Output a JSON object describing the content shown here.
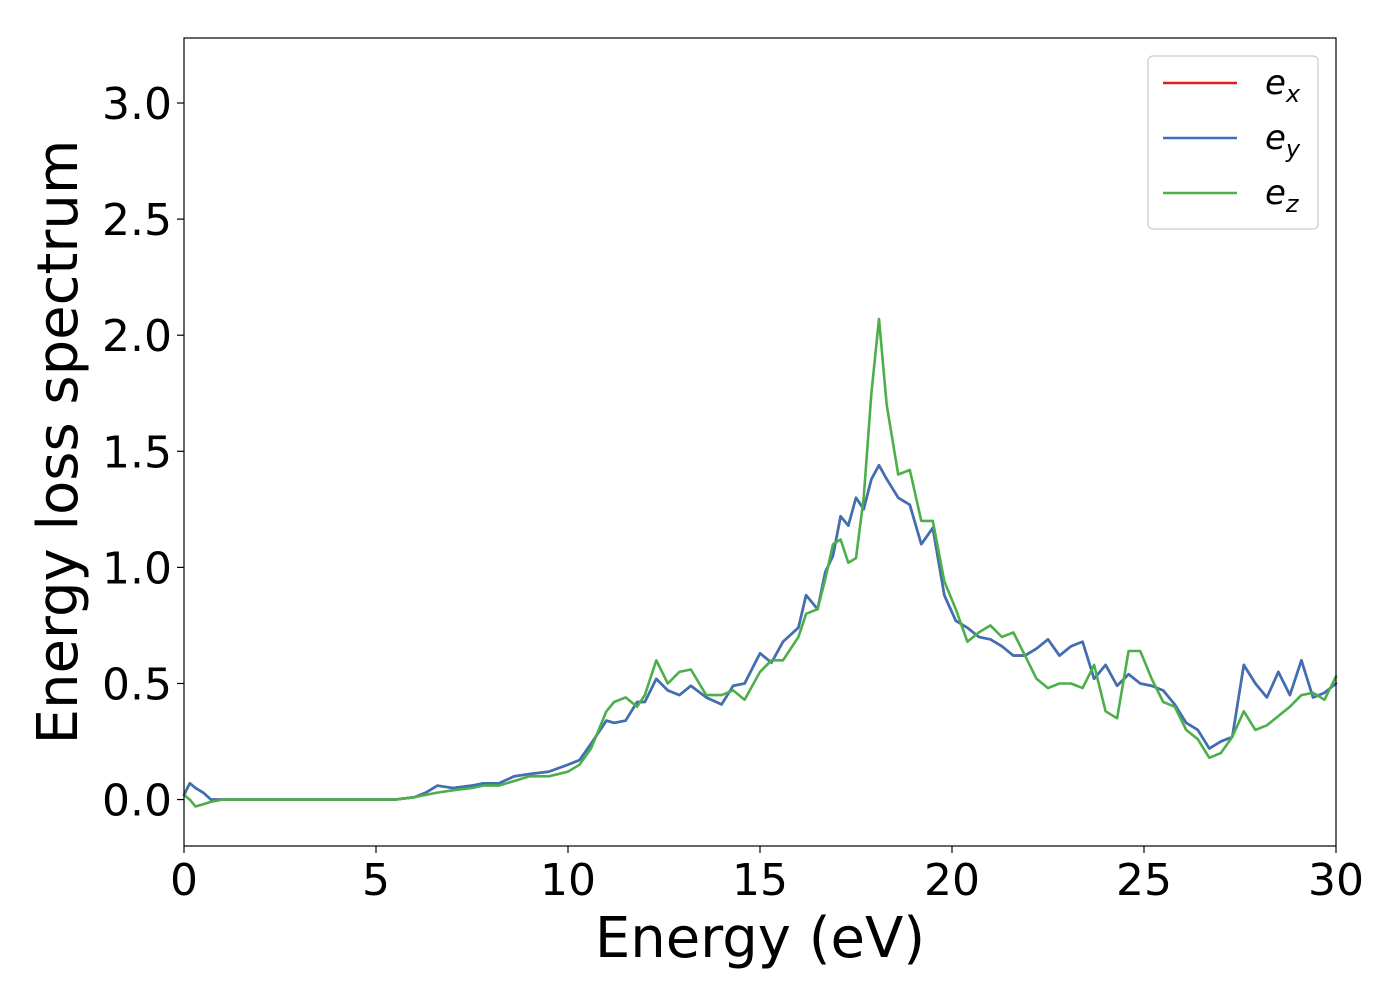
{
  "chart_data": {
    "type": "line",
    "title": "",
    "xlabel": "Energy (eV)",
    "ylabel": "Energy loss spectrum",
    "xlim": [
      0,
      30
    ],
    "ylim": [
      -0.2,
      3.28
    ],
    "xticks": [
      0,
      5,
      10,
      15,
      20,
      25,
      30
    ],
    "xtick_labels": [
      "0",
      "5",
      "10",
      "15",
      "20",
      "25",
      "30"
    ],
    "yticks": [
      0.0,
      0.5,
      1.0,
      1.5,
      2.0,
      2.5,
      3.0
    ],
    "ytick_labels": [
      "0.0",
      "0.5",
      "1.0",
      "1.5",
      "2.0",
      "2.5",
      "3.0"
    ],
    "grid": false,
    "legend_position": "top-right",
    "series": [
      {
        "name": "e",
        "subscript": "x",
        "color": "#e41a1c",
        "x": [
          0,
          0.15,
          0.3,
          0.5,
          0.7,
          1.0,
          2,
          3,
          4,
          5,
          5.5,
          6,
          6.3,
          6.6,
          7,
          7.5,
          7.8,
          8.2,
          8.6,
          9,
          9.5,
          10,
          10.3,
          10.6,
          11,
          11.2,
          11.5,
          11.8,
          12,
          12.3,
          12.6,
          12.9,
          13.2,
          13.6,
          14,
          14.3,
          14.6,
          15,
          15.3,
          15.6,
          16,
          16.2,
          16.5,
          16.7,
          16.9,
          17.1,
          17.3,
          17.5,
          17.7,
          17.9,
          18.1,
          18.3,
          18.6,
          18.9,
          19.2,
          19.5,
          19.8,
          20.1,
          20.4,
          20.7,
          21,
          21.3,
          21.6,
          21.9,
          22.2,
          22.5,
          22.8,
          23.1,
          23.4,
          23.7,
          24,
          24.3,
          24.6,
          24.9,
          25.2,
          25.5,
          25.8,
          26.1,
          26.4,
          26.7,
          27,
          27.3,
          27.6,
          27.9,
          28.2,
          28.5,
          28.8,
          29.1,
          29.4,
          29.7,
          30
        ],
        "y": [
          0.02,
          0.07,
          0.05,
          0.03,
          0.0,
          0.0,
          0.0,
          0.0,
          0.0,
          0.0,
          0.0,
          0.01,
          0.03,
          0.06,
          0.05,
          0.06,
          0.07,
          0.07,
          0.1,
          0.11,
          0.12,
          0.15,
          0.17,
          0.24,
          0.34,
          0.33,
          0.34,
          0.42,
          0.42,
          0.52,
          0.47,
          0.45,
          0.49,
          0.44,
          0.41,
          0.49,
          0.5,
          0.63,
          0.59,
          0.68,
          0.74,
          0.88,
          0.82,
          0.98,
          1.05,
          1.22,
          1.18,
          1.3,
          1.25,
          1.38,
          1.44,
          1.38,
          1.3,
          1.27,
          1.1,
          1.17,
          0.88,
          0.77,
          0.74,
          0.7,
          0.69,
          0.66,
          0.62,
          0.62,
          0.65,
          0.69,
          0.62,
          0.66,
          0.68,
          0.52,
          0.58,
          0.49,
          0.54,
          0.5,
          0.49,
          0.47,
          0.41,
          0.33,
          0.3,
          0.22,
          0.25,
          0.27,
          0.58,
          0.5,
          0.44,
          0.55,
          0.45,
          0.6,
          0.44,
          0.46,
          0.5
        ]
      },
      {
        "name": "e",
        "subscript": "y",
        "color": "#3a72b8",
        "x": [
          0,
          0.15,
          0.3,
          0.5,
          0.7,
          1.0,
          2,
          3,
          4,
          5,
          5.5,
          6,
          6.3,
          6.6,
          7,
          7.5,
          7.8,
          8.2,
          8.6,
          9,
          9.5,
          10,
          10.3,
          10.6,
          11,
          11.2,
          11.5,
          11.8,
          12,
          12.3,
          12.6,
          12.9,
          13.2,
          13.6,
          14,
          14.3,
          14.6,
          15,
          15.3,
          15.6,
          16,
          16.2,
          16.5,
          16.7,
          16.9,
          17.1,
          17.3,
          17.5,
          17.7,
          17.9,
          18.1,
          18.3,
          18.6,
          18.9,
          19.2,
          19.5,
          19.8,
          20.1,
          20.4,
          20.7,
          21,
          21.3,
          21.6,
          21.9,
          22.2,
          22.5,
          22.8,
          23.1,
          23.4,
          23.7,
          24,
          24.3,
          24.6,
          24.9,
          25.2,
          25.5,
          25.8,
          26.1,
          26.4,
          26.7,
          27,
          27.3,
          27.6,
          27.9,
          28.2,
          28.5,
          28.8,
          29.1,
          29.4,
          29.7,
          30
        ],
        "y": [
          0.02,
          0.07,
          0.05,
          0.03,
          0.0,
          0.0,
          0.0,
          0.0,
          0.0,
          0.0,
          0.0,
          0.01,
          0.03,
          0.06,
          0.05,
          0.06,
          0.07,
          0.07,
          0.1,
          0.11,
          0.12,
          0.15,
          0.17,
          0.24,
          0.34,
          0.33,
          0.34,
          0.42,
          0.42,
          0.52,
          0.47,
          0.45,
          0.49,
          0.44,
          0.41,
          0.49,
          0.5,
          0.63,
          0.59,
          0.68,
          0.74,
          0.88,
          0.82,
          0.98,
          1.05,
          1.22,
          1.18,
          1.3,
          1.25,
          1.38,
          1.44,
          1.38,
          1.3,
          1.27,
          1.1,
          1.17,
          0.88,
          0.77,
          0.74,
          0.7,
          0.69,
          0.66,
          0.62,
          0.62,
          0.65,
          0.69,
          0.62,
          0.66,
          0.68,
          0.52,
          0.58,
          0.49,
          0.54,
          0.5,
          0.49,
          0.47,
          0.41,
          0.33,
          0.3,
          0.22,
          0.25,
          0.27,
          0.58,
          0.5,
          0.44,
          0.55,
          0.45,
          0.6,
          0.44,
          0.46,
          0.5
        ]
      },
      {
        "name": "e",
        "subscript": "z",
        "color": "#4daf4a",
        "x": [
          0,
          0.15,
          0.3,
          0.5,
          0.7,
          1.0,
          2,
          3,
          4,
          5,
          5.5,
          6,
          6.3,
          6.6,
          7,
          7.5,
          7.8,
          8.2,
          8.6,
          9,
          9.5,
          10,
          10.3,
          10.6,
          11,
          11.2,
          11.5,
          11.8,
          12,
          12.3,
          12.6,
          12.9,
          13.2,
          13.6,
          14,
          14.3,
          14.6,
          15,
          15.3,
          15.6,
          16,
          16.2,
          16.5,
          16.7,
          16.9,
          17.1,
          17.3,
          17.5,
          17.7,
          17.9,
          18.1,
          18.3,
          18.6,
          18.9,
          19.2,
          19.5,
          19.8,
          20.1,
          20.4,
          20.7,
          21,
          21.3,
          21.6,
          21.9,
          22.2,
          22.5,
          22.8,
          23.1,
          23.4,
          23.7,
          24,
          24.3,
          24.6,
          24.9,
          25.2,
          25.5,
          25.8,
          26.1,
          26.4,
          26.7,
          27,
          27.3,
          27.6,
          27.9,
          28.2,
          28.5,
          28.8,
          29.1,
          29.4,
          29.7,
          30
        ],
        "y": [
          0.02,
          0.0,
          -0.03,
          -0.02,
          -0.01,
          0.0,
          0.0,
          0.0,
          0.0,
          0.0,
          0.0,
          0.01,
          0.02,
          0.03,
          0.04,
          0.05,
          0.06,
          0.06,
          0.08,
          0.1,
          0.1,
          0.12,
          0.15,
          0.22,
          0.38,
          0.42,
          0.44,
          0.4,
          0.45,
          0.6,
          0.5,
          0.55,
          0.56,
          0.45,
          0.45,
          0.47,
          0.43,
          0.55,
          0.6,
          0.6,
          0.7,
          0.8,
          0.82,
          0.95,
          1.1,
          1.12,
          1.02,
          1.04,
          1.3,
          1.75,
          2.07,
          1.7,
          1.4,
          1.42,
          1.2,
          1.2,
          0.94,
          0.82,
          0.68,
          0.72,
          0.75,
          0.7,
          0.72,
          0.62,
          0.52,
          0.48,
          0.5,
          0.5,
          0.48,
          0.58,
          0.38,
          0.35,
          0.64,
          0.64,
          0.52,
          0.42,
          0.4,
          0.3,
          0.26,
          0.18,
          0.2,
          0.27,
          0.38,
          0.3,
          0.32,
          0.36,
          0.4,
          0.45,
          0.46,
          0.43,
          0.53
        ]
      }
    ]
  }
}
